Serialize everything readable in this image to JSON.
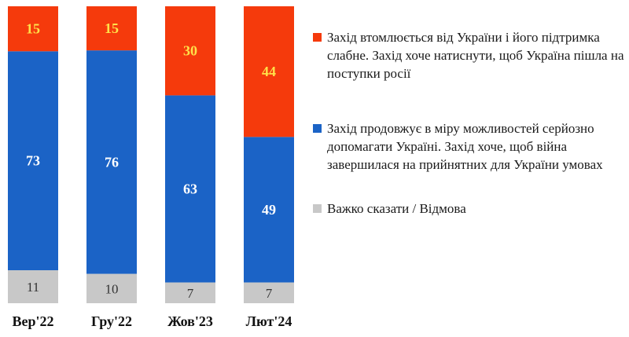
{
  "chart_data": {
    "type": "bar",
    "stacked": true,
    "normalized_percent": true,
    "categories": [
      "Вер'22",
      "Гру'22",
      "Жов'23",
      "Лют'24"
    ],
    "series": [
      {
        "name": "Важко сказати / Відмова",
        "color": "#c8c8c8",
        "label_color": "#333333",
        "values": [
          11,
          10,
          7,
          7
        ]
      },
      {
        "name": "Захід продовжує в міру можливостей серйозно допомагати Україні. Захід хоче, щоб війна завершилася на прийнятних для України умовах",
        "color": "#1b63c6",
        "label_color": "#ffffff",
        "values": [
          73,
          76,
          63,
          49
        ]
      },
      {
        "name": "Захід втомлюється від України і його підтримка слабне. Захід хоче натиснути, щоб Україна пішла на поступки росії",
        "color": "#f53a0c",
        "label_color": "#ffe14a",
        "values": [
          15,
          15,
          30,
          44
        ]
      }
    ],
    "legend_order": [
      2,
      1,
      0
    ],
    "legend_position": "right",
    "grid": false
  }
}
